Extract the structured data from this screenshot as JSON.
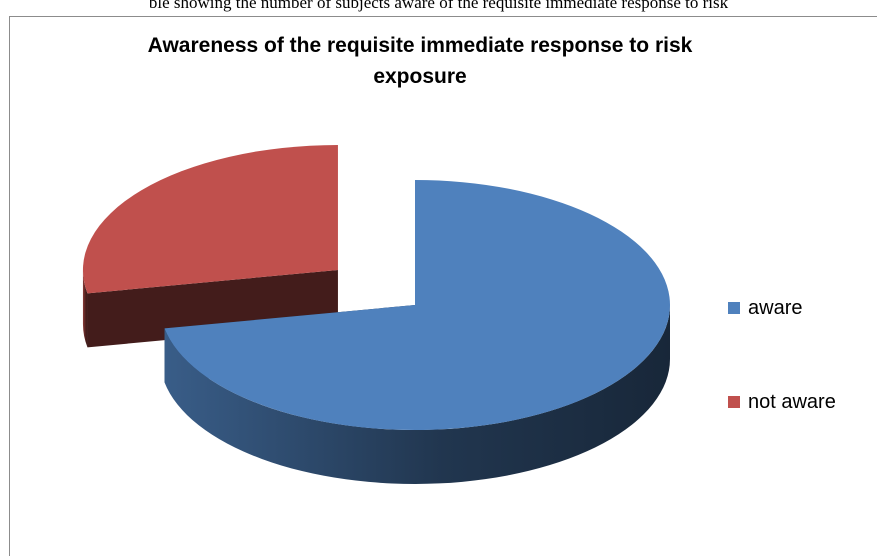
{
  "caption": "ble showing the number of subjects aware of the requisite immediate response to risk",
  "chart_data": {
    "type": "pie",
    "title_lines": [
      "Awareness of the requisite immediate response to risk",
      "exposure"
    ],
    "categories": [
      "aware",
      "not aware"
    ],
    "values": [
      72,
      28
    ],
    "colors": [
      "#4F81BD",
      "#C0504D"
    ],
    "exploded": [
      "",
      "not aware"
    ],
    "legend_position": "right",
    "style": "3d-exploded"
  }
}
